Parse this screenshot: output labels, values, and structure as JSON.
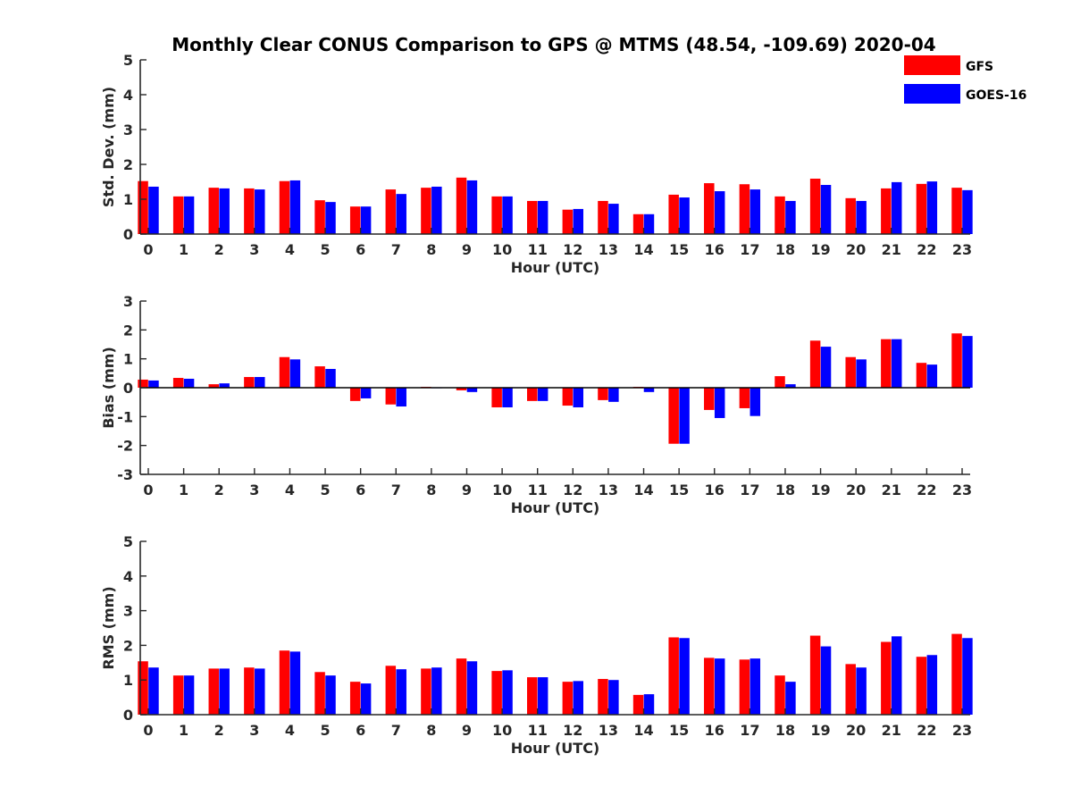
{
  "figure_title": "Monthly Clear CONUS Comparison to GPS @ MTMS (48.54, -109.69) 2020-04",
  "colors": {
    "GFS": "#ff0000",
    "GOES-16": "#0000ff",
    "axis": "#262626"
  },
  "legend": {
    "placement": "top-right",
    "entries": [
      "GFS",
      "GOES-16"
    ]
  },
  "chart_data": [
    {
      "type": "bar",
      "id": "std",
      "title": "Monthly Clear CONUS Comparison to GPS @ MTMS (48.54, -109.69) 2020-04",
      "xlabel": "Hour (UTC)",
      "ylabel": "Std. Dev. (mm)",
      "ylim": [
        0,
        5
      ],
      "yticks": [
        0,
        1,
        2,
        3,
        4,
        5
      ],
      "categories": [
        "0",
        "1",
        "2",
        "3",
        "4",
        "5",
        "6",
        "7",
        "8",
        "9",
        "10",
        "11",
        "12",
        "13",
        "14",
        "15",
        "16",
        "17",
        "18",
        "19",
        "20",
        "21",
        "22",
        "23"
      ],
      "series": [
        {
          "name": "GFS",
          "values": [
            1.52,
            1.08,
            1.33,
            1.31,
            1.52,
            0.97,
            0.79,
            1.28,
            1.33,
            1.62,
            1.08,
            0.95,
            0.7,
            0.95,
            0.57,
            1.13,
            1.46,
            1.43,
            1.08,
            1.59,
            1.03,
            1.31,
            1.44,
            1.33
          ]
        },
        {
          "name": "GOES-16",
          "values": [
            1.36,
            1.08,
            1.31,
            1.28,
            1.54,
            0.92,
            0.79,
            1.15,
            1.36,
            1.54,
            1.08,
            0.95,
            0.72,
            0.87,
            0.57,
            1.05,
            1.23,
            1.28,
            0.95,
            1.41,
            0.95,
            1.49,
            1.51,
            1.26
          ]
        }
      ]
    },
    {
      "type": "bar",
      "id": "bias",
      "title": "",
      "xlabel": "Hour (UTC)",
      "ylabel": "Bias (mm)",
      "ylim": [
        -3,
        3
      ],
      "yticks": [
        -3,
        -2,
        -1,
        0,
        1,
        2,
        3
      ],
      "categories": [
        "0",
        "1",
        "2",
        "3",
        "4",
        "5",
        "6",
        "7",
        "8",
        "9",
        "10",
        "11",
        "12",
        "13",
        "14",
        "15",
        "16",
        "17",
        "18",
        "19",
        "20",
        "21",
        "22",
        "23"
      ],
      "series": [
        {
          "name": "GFS",
          "values": [
            0.28,
            0.34,
            0.12,
            0.37,
            1.06,
            0.74,
            -0.46,
            -0.58,
            0.03,
            -0.09,
            -0.68,
            -0.46,
            -0.62,
            -0.43,
            0.03,
            -1.94,
            -0.77,
            -0.71,
            0.4,
            1.63,
            1.06,
            1.68,
            0.86,
            1.88
          ]
        },
        {
          "name": "GOES-16",
          "values": [
            0.25,
            0.31,
            0.15,
            0.37,
            0.98,
            0.65,
            -0.37,
            -0.65,
            0.0,
            -0.15,
            -0.68,
            -0.46,
            -0.68,
            -0.49,
            -0.15,
            -1.94,
            -1.05,
            -0.98,
            0.12,
            1.42,
            0.98,
            1.68,
            0.8,
            1.79
          ]
        }
      ]
    },
    {
      "type": "bar",
      "id": "rms",
      "title": "",
      "xlabel": "Hour (UTC)",
      "ylabel": "RMS (mm)",
      "ylim": [
        0,
        5
      ],
      "yticks": [
        0,
        1,
        2,
        3,
        4,
        5
      ],
      "categories": [
        "0",
        "1",
        "2",
        "3",
        "4",
        "5",
        "6",
        "7",
        "8",
        "9",
        "10",
        "11",
        "12",
        "13",
        "14",
        "15",
        "16",
        "17",
        "18",
        "19",
        "20",
        "21",
        "22",
        "23"
      ],
      "series": [
        {
          "name": "GFS",
          "values": [
            1.54,
            1.13,
            1.33,
            1.36,
            1.85,
            1.23,
            0.95,
            1.41,
            1.33,
            1.62,
            1.26,
            1.08,
            0.95,
            1.03,
            0.57,
            2.23,
            1.64,
            1.59,
            1.13,
            2.28,
            1.46,
            2.1,
            1.67,
            2.33
          ]
        },
        {
          "name": "GOES-16",
          "values": [
            1.36,
            1.13,
            1.33,
            1.33,
            1.82,
            1.13,
            0.9,
            1.31,
            1.36,
            1.54,
            1.28,
            1.08,
            0.97,
            1.0,
            0.59,
            2.21,
            1.62,
            1.62,
            0.95,
            1.97,
            1.36,
            2.26,
            1.72,
            2.21
          ]
        }
      ]
    }
  ]
}
